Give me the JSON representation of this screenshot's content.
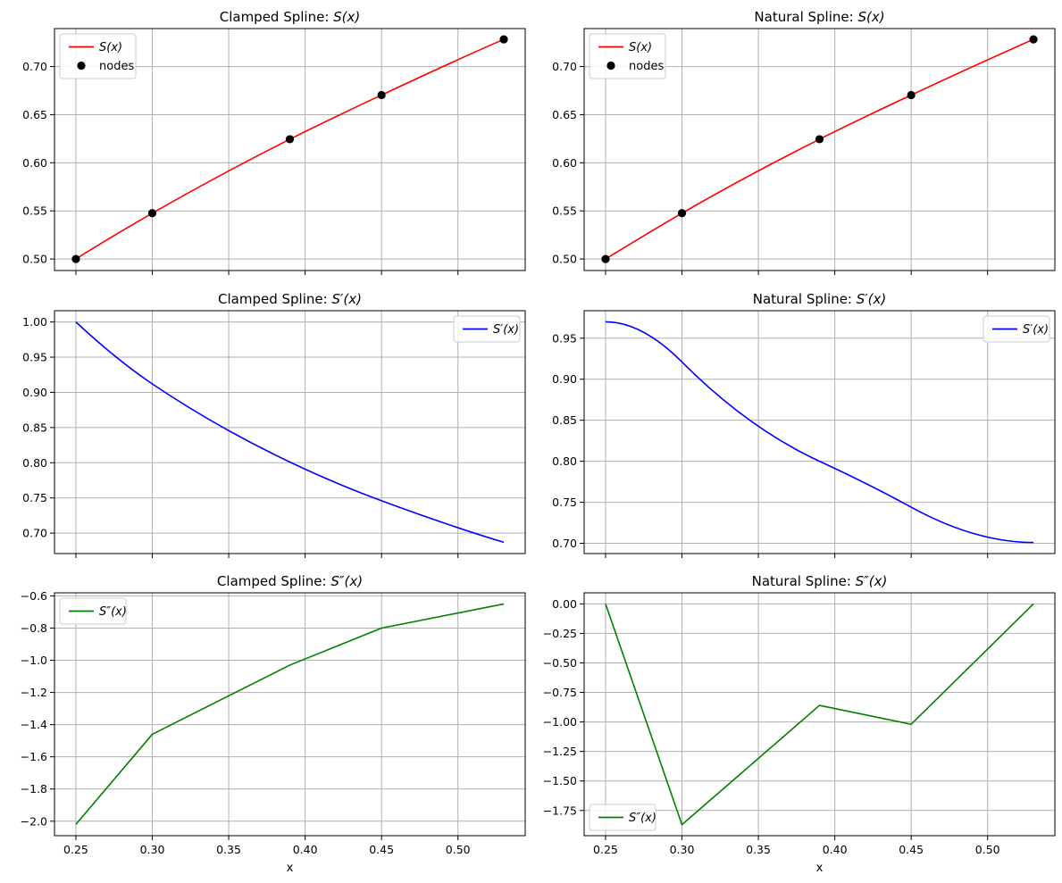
{
  "chart_data": [
    {
      "type": "line",
      "title_prefix": "Clamped Spline: ",
      "title_math": "S(x)",
      "xlabel": "",
      "xticks": [
        "0.25",
        "0.30",
        "0.35",
        "0.40",
        "0.45",
        "0.50"
      ],
      "show_xtick_labels": false,
      "xlim": [
        0.236,
        0.544
      ],
      "ylim": [
        0.488,
        0.7395
      ],
      "yticks": [
        0.5,
        0.55,
        0.6,
        0.65,
        0.7
      ],
      "ytick_labels": [
        "0.50",
        "0.55",
        "0.60",
        "0.65",
        "0.70"
      ],
      "grid": true,
      "legend_placement": "upper-left",
      "series": [
        {
          "name": "S(x)",
          "color": "#ff0000",
          "kind": "line",
          "x": [
            0.25,
            0.3,
            0.39,
            0.45,
            0.53
          ],
          "y": [
            0.5,
            0.5476,
            0.6245,
            0.6704,
            0.7283
          ],
          "slopes": [
            1.0,
            0.912,
            0.801,
            0.746,
            0.687
          ]
        },
        {
          "name": "nodes",
          "color": "#000000",
          "kind": "marker",
          "x": [
            0.25,
            0.3,
            0.39,
            0.45,
            0.53
          ],
          "y": [
            0.5,
            0.5476,
            0.6245,
            0.6704,
            0.7283
          ]
        }
      ]
    },
    {
      "type": "line",
      "title_prefix": "Natural Spline: ",
      "title_math": "S(x)",
      "xlabel": "",
      "xticks": [
        "0.25",
        "0.30",
        "0.35",
        "0.40",
        "0.45",
        "0.50"
      ],
      "show_xtick_labels": false,
      "xlim": [
        0.236,
        0.544
      ],
      "ylim": [
        0.488,
        0.7395
      ],
      "yticks": [
        0.5,
        0.55,
        0.6,
        0.65,
        0.7
      ],
      "ytick_labels": [
        "0.50",
        "0.55",
        "0.60",
        "0.65",
        "0.70"
      ],
      "grid": true,
      "legend_placement": "upper-left",
      "series": [
        {
          "name": "S(x)",
          "color": "#ff0000",
          "kind": "line",
          "x": [
            0.25,
            0.3,
            0.39,
            0.45,
            0.53
          ],
          "y": [
            0.5,
            0.5476,
            0.6245,
            0.6704,
            0.7283
          ],
          "slopes": [
            0.97,
            0.921,
            0.8,
            0.744,
            0.701
          ]
        },
        {
          "name": "nodes",
          "color": "#000000",
          "kind": "marker",
          "x": [
            0.25,
            0.3,
            0.39,
            0.45,
            0.53
          ],
          "y": [
            0.5,
            0.5476,
            0.6245,
            0.6704,
            0.7283
          ]
        }
      ]
    },
    {
      "type": "line",
      "title_prefix": "Clamped Spline: ",
      "title_math": "S′(x)",
      "xlabel": "",
      "xticks": [
        "0.25",
        "0.30",
        "0.35",
        "0.40",
        "0.45",
        "0.50"
      ],
      "show_xtick_labels": false,
      "xlim": [
        0.236,
        0.544
      ],
      "ylim": [
        0.671,
        1.016
      ],
      "yticks": [
        0.7,
        0.75,
        0.8,
        0.85,
        0.9,
        0.95,
        1.0
      ],
      "ytick_labels": [
        "0.70",
        "0.75",
        "0.80",
        "0.85",
        "0.90",
        "0.95",
        "1.00"
      ],
      "grid": true,
      "legend_placement": "upper-right",
      "series": [
        {
          "name": "S′(x)",
          "color": "#0000ff",
          "kind": "line",
          "x": [
            0.25,
            0.3,
            0.39,
            0.45,
            0.53
          ],
          "y": [
            1.0,
            0.912,
            0.801,
            0.746,
            0.687
          ],
          "slopes": [
            -2.02,
            -1.46,
            -1.03,
            -0.8,
            -0.65
          ]
        }
      ]
    },
    {
      "type": "line",
      "title_prefix": "Natural Spline: ",
      "title_math": "S′(x)",
      "xlabel": "",
      "xticks": [
        "0.25",
        "0.30",
        "0.35",
        "0.40",
        "0.45",
        "0.50"
      ],
      "show_xtick_labels": false,
      "xlim": [
        0.236,
        0.544
      ],
      "ylim": [
        0.6875,
        0.9835
      ],
      "yticks": [
        0.7,
        0.75,
        0.8,
        0.85,
        0.9,
        0.95
      ],
      "ytick_labels": [
        "0.70",
        "0.75",
        "0.80",
        "0.85",
        "0.90",
        "0.95"
      ],
      "grid": true,
      "legend_placement": "upper-right",
      "series": [
        {
          "name": "S′(x)",
          "color": "#0000ff",
          "kind": "line",
          "x": [
            0.25,
            0.3,
            0.39,
            0.45,
            0.53
          ],
          "y": [
            0.97,
            0.921,
            0.8,
            0.744,
            0.701
          ],
          "slopes": [
            0.0,
            -1.87,
            -0.86,
            -1.02,
            0.0
          ]
        }
      ]
    },
    {
      "type": "line",
      "title_prefix": "Clamped Spline: ",
      "title_math": "S″(x)",
      "xlabel": "x",
      "xticks": [
        "0.25",
        "0.30",
        "0.35",
        "0.40",
        "0.45",
        "0.50"
      ],
      "show_xtick_labels": true,
      "xlim": [
        0.236,
        0.544
      ],
      "ylim": [
        -2.09,
        -0.581
      ],
      "yticks": [
        -2.0,
        -1.8,
        -1.6,
        -1.4,
        -1.2,
        -1.0,
        -0.8,
        -0.6
      ],
      "ytick_labels": [
        "−2.0",
        "−1.8",
        "−1.6",
        "−1.4",
        "−1.2",
        "−1.0",
        "−0.8",
        "−0.6"
      ],
      "grid": true,
      "legend_placement": "upper-left",
      "series": [
        {
          "name": "S″(x)",
          "color": "#008000",
          "kind": "line",
          "x": [
            0.25,
            0.3,
            0.39,
            0.45,
            0.53
          ],
          "y": [
            -2.02,
            -1.46,
            -1.03,
            -0.8,
            -0.65
          ]
        }
      ]
    },
    {
      "type": "line",
      "title_prefix": "Natural Spline: ",
      "title_math": "S″(x)",
      "xlabel": "x",
      "xticks": [
        "0.25",
        "0.30",
        "0.35",
        "0.40",
        "0.45",
        "0.50"
      ],
      "show_xtick_labels": true,
      "xlim": [
        0.236,
        0.544
      ],
      "ylim": [
        -1.9635,
        0.0935
      ],
      "yticks": [
        0.0,
        -0.25,
        -0.5,
        -0.75,
        -1.0,
        -1.25,
        -1.5,
        -1.75
      ],
      "ytick_labels": [
        "0.00",
        "−0.25",
        "−0.50",
        "−0.75",
        "−1.00",
        "−1.25",
        "−1.50",
        "−1.75"
      ],
      "grid": true,
      "legend_placement": "lower-left",
      "series": [
        {
          "name": "S″(x)",
          "color": "#008000",
          "kind": "line",
          "x": [
            0.25,
            0.3,
            0.39,
            0.45,
            0.53
          ],
          "y": [
            0.0,
            -1.87,
            -0.86,
            -1.02,
            0.0
          ]
        }
      ]
    }
  ]
}
